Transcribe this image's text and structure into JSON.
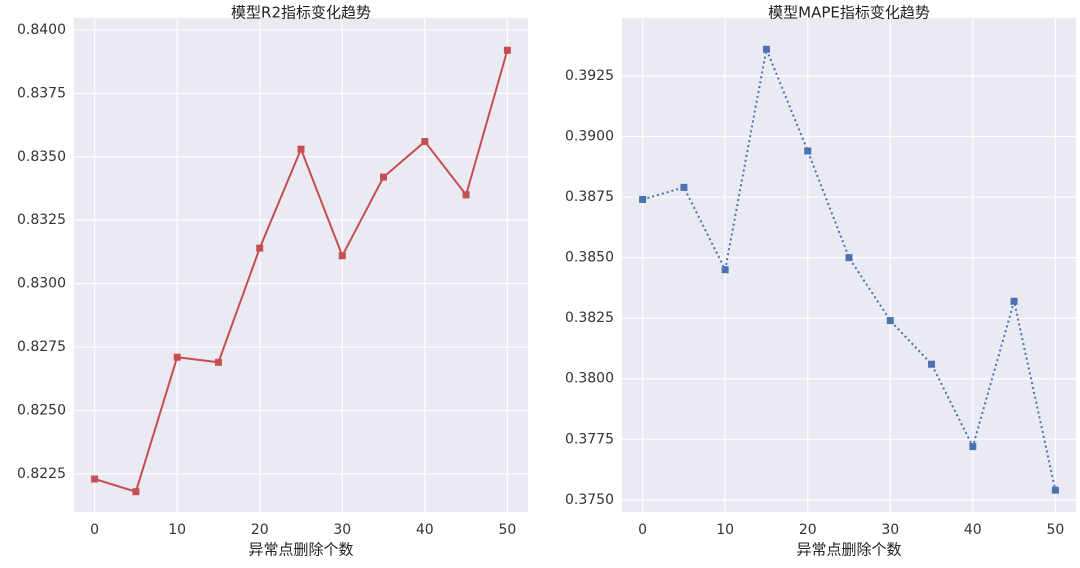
{
  "chart_data": [
    {
      "type": "line",
      "title": "模型R2指标变化趋势",
      "x_label": "异常点删除个数",
      "x": [
        0,
        5,
        10,
        15,
        20,
        25,
        30,
        35,
        40,
        45,
        50
      ],
      "series": [
        {
          "color": "#c44e52",
          "linestyle": "solid",
          "marker": "square",
          "values": [
            0.8223,
            0.8218,
            0.8271,
            0.8269,
            0.8314,
            0.8353,
            0.8311,
            0.8342,
            0.8356,
            0.8335,
            0.8392
          ]
        }
      ],
      "xlim": [
        -2.5,
        52.5
      ],
      "ylim": [
        0.821,
        0.84047
      ],
      "xticks": [
        0,
        10,
        20,
        30,
        40,
        50
      ],
      "yticks": [
        {
          "value": 0.8225,
          "label": "0.8225"
        },
        {
          "value": 0.825,
          "label": "0.8250"
        },
        {
          "value": 0.8275,
          "label": "0.8275"
        },
        {
          "value": 0.83,
          "label": "0.8300"
        },
        {
          "value": 0.8325,
          "label": "0.8325"
        },
        {
          "value": 0.835,
          "label": "0.8350"
        },
        {
          "value": 0.8375,
          "label": "0.8375"
        },
        {
          "value": 0.84,
          "label": "0.8400"
        }
      ],
      "grid": true
    },
    {
      "type": "line",
      "title": "模型MAPE指标变化趋势",
      "x_label": "异常点删除个数",
      "x": [
        0,
        5,
        10,
        15,
        20,
        25,
        30,
        35,
        40,
        45,
        50
      ],
      "series": [
        {
          "color": "#4c72b0",
          "linestyle": "dotted",
          "marker": "square",
          "values": [
            0.3874,
            0.3879,
            0.3845,
            0.3936,
            0.3894,
            0.385,
            0.3824,
            0.3806,
            0.3772,
            0.3832,
            0.3754
          ]
        }
      ],
      "xlim": [
        -2.5,
        52.5
      ],
      "ylim": [
        0.3745,
        0.39489
      ],
      "xticks": [
        0,
        10,
        20,
        30,
        40,
        50
      ],
      "yticks": [
        {
          "value": 0.375,
          "label": "0.3750"
        },
        {
          "value": 0.3775,
          "label": "0.3775"
        },
        {
          "value": 0.38,
          "label": "0.3800"
        },
        {
          "value": 0.3825,
          "label": "0.3825"
        },
        {
          "value": 0.385,
          "label": "0.3850"
        },
        {
          "value": 0.3875,
          "label": "0.3875"
        },
        {
          "value": 0.39,
          "label": "0.3900"
        },
        {
          "value": 0.3925,
          "label": "0.3925"
        }
      ],
      "grid": true
    }
  ]
}
